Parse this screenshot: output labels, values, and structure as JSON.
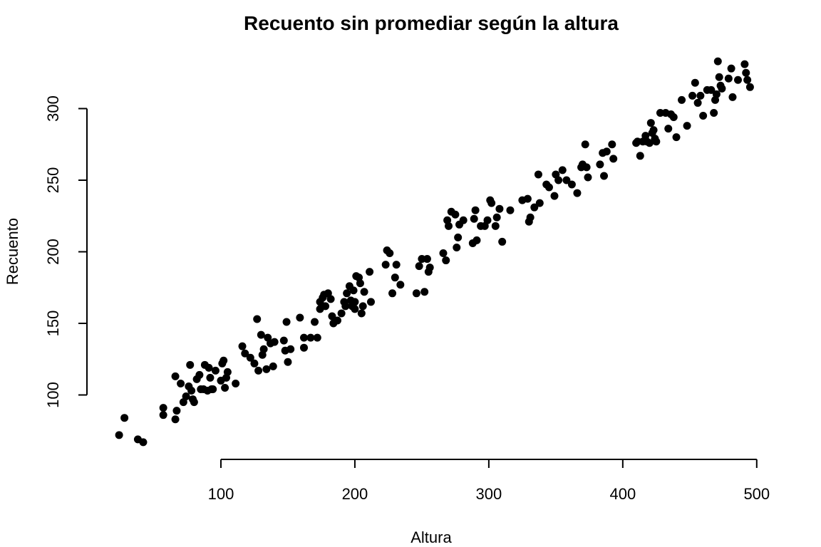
{
  "chart_data": {
    "type": "scatter",
    "title": "Recuento sin promediar según la altura",
    "xlabel": "Altura",
    "ylabel": "Recuento",
    "xlim": [
      0,
      515
    ],
    "ylim": [
      55,
      345
    ],
    "xticks": [
      100,
      200,
      300,
      400,
      500
    ],
    "yticks": [
      100,
      150,
      200,
      250,
      300
    ],
    "grid": false,
    "point_color": "#000000",
    "points": [
      [
        24,
        72
      ],
      [
        28,
        84
      ],
      [
        38,
        69
      ],
      [
        42,
        67
      ],
      [
        57,
        91
      ],
      [
        57,
        86
      ],
      [
        66,
        83
      ],
      [
        66,
        113
      ],
      [
        67,
        89
      ],
      [
        70,
        108
      ],
      [
        72,
        95
      ],
      [
        74,
        99
      ],
      [
        76,
        106
      ],
      [
        77,
        121
      ],
      [
        78,
        103
      ],
      [
        79,
        97
      ],
      [
        80,
        95
      ],
      [
        82,
        111
      ],
      [
        84,
        114
      ],
      [
        85,
        104
      ],
      [
        87,
        104
      ],
      [
        88,
        121
      ],
      [
        90,
        103
      ],
      [
        91,
        119
      ],
      [
        92,
        112
      ],
      [
        93,
        104
      ],
      [
        94,
        104
      ],
      [
        96,
        117
      ],
      [
        100,
        110
      ],
      [
        101,
        122
      ],
      [
        102,
        124
      ],
      [
        103,
        105
      ],
      [
        104,
        112
      ],
      [
        105,
        116
      ],
      [
        111,
        108
      ],
      [
        116,
        134
      ],
      [
        118,
        129
      ],
      [
        122,
        126
      ],
      [
        125,
        122
      ],
      [
        127,
        153
      ],
      [
        128,
        117
      ],
      [
        130,
        142
      ],
      [
        131,
        128
      ],
      [
        132,
        132
      ],
      [
        134,
        118
      ],
      [
        135,
        140
      ],
      [
        137,
        136
      ],
      [
        139,
        120
      ],
      [
        140,
        137
      ],
      [
        147,
        138
      ],
      [
        148,
        131
      ],
      [
        149,
        151
      ],
      [
        150,
        123
      ],
      [
        152,
        132
      ],
      [
        159,
        154
      ],
      [
        162,
        140
      ],
      [
        162,
        133
      ],
      [
        167,
        140
      ],
      [
        170,
        151
      ],
      [
        172,
        140
      ],
      [
        174,
        160
      ],
      [
        174,
        165
      ],
      [
        176,
        168
      ],
      [
        177,
        170
      ],
      [
        178,
        162
      ],
      [
        180,
        171
      ],
      [
        182,
        167
      ],
      [
        183,
        155
      ],
      [
        184,
        150
      ],
      [
        187,
        152
      ],
      [
        190,
        157
      ],
      [
        192,
        165
      ],
      [
        193,
        162
      ],
      [
        194,
        171
      ],
      [
        196,
        176
      ],
      [
        197,
        166
      ],
      [
        198,
        162
      ],
      [
        199,
        173
      ],
      [
        200,
        165
      ],
      [
        200,
        160
      ],
      [
        201,
        183
      ],
      [
        203,
        182
      ],
      [
        204,
        178
      ],
      [
        205,
        157
      ],
      [
        206,
        162
      ],
      [
        207,
        172
      ],
      [
        211,
        186
      ],
      [
        212,
        165
      ],
      [
        223,
        191
      ],
      [
        224,
        201
      ],
      [
        226,
        199
      ],
      [
        228,
        171
      ],
      [
        230,
        182
      ],
      [
        231,
        191
      ],
      [
        234,
        177
      ],
      [
        246,
        171
      ],
      [
        248,
        190
      ],
      [
        250,
        195
      ],
      [
        252,
        172
      ],
      [
        254,
        195
      ],
      [
        255,
        186
      ],
      [
        256,
        189
      ],
      [
        266,
        199
      ],
      [
        268,
        194
      ],
      [
        269,
        222
      ],
      [
        270,
        218
      ],
      [
        272,
        228
      ],
      [
        275,
        226
      ],
      [
        276,
        203
      ],
      [
        277,
        210
      ],
      [
        278,
        219
      ],
      [
        281,
        222
      ],
      [
        288,
        206
      ],
      [
        289,
        223
      ],
      [
        290,
        229
      ],
      [
        291,
        208
      ],
      [
        294,
        218
      ],
      [
        297,
        218
      ],
      [
        299,
        222
      ],
      [
        301,
        236
      ],
      [
        302,
        234
      ],
      [
        305,
        218
      ],
      [
        306,
        224
      ],
      [
        308,
        230
      ],
      [
        310,
        207
      ],
      [
        316,
        229
      ],
      [
        325,
        236
      ],
      [
        329,
        237
      ],
      [
        330,
        221
      ],
      [
        331,
        224
      ],
      [
        334,
        231
      ],
      [
        337,
        254
      ],
      [
        338,
        234
      ],
      [
        343,
        247
      ],
      [
        345,
        245
      ],
      [
        349,
        239
      ],
      [
        350,
        254
      ],
      [
        352,
        250
      ],
      [
        355,
        257
      ],
      [
        358,
        250
      ],
      [
        362,
        247
      ],
      [
        366,
        241
      ],
      [
        369,
        259
      ],
      [
        370,
        261
      ],
      [
        372,
        275
      ],
      [
        373,
        259
      ],
      [
        374,
        252
      ],
      [
        383,
        261
      ],
      [
        385,
        269
      ],
      [
        386,
        253
      ],
      [
        388,
        270
      ],
      [
        392,
        275
      ],
      [
        393,
        265
      ],
      [
        410,
        276
      ],
      [
        411,
        277
      ],
      [
        413,
        267
      ],
      [
        415,
        277
      ],
      [
        417,
        281
      ],
      [
        418,
        277
      ],
      [
        420,
        276
      ],
      [
        421,
        290
      ],
      [
        422,
        283
      ],
      [
        423,
        285
      ],
      [
        424,
        279
      ],
      [
        425,
        277
      ],
      [
        428,
        297
      ],
      [
        432,
        297
      ],
      [
        434,
        286
      ],
      [
        436,
        296
      ],
      [
        438,
        294
      ],
      [
        440,
        280
      ],
      [
        444,
        306
      ],
      [
        448,
        288
      ],
      [
        452,
        309
      ],
      [
        454,
        318
      ],
      [
        456,
        304
      ],
      [
        458,
        309
      ],
      [
        460,
        295
      ],
      [
        463,
        313
      ],
      [
        466,
        313
      ],
      [
        468,
        297
      ],
      [
        469,
        306
      ],
      [
        470,
        310
      ],
      [
        471,
        333
      ],
      [
        472,
        322
      ],
      [
        473,
        316
      ],
      [
        474,
        314
      ],
      [
        479,
        321
      ],
      [
        481,
        328
      ],
      [
        482,
        308
      ],
      [
        486,
        320
      ],
      [
        491,
        331
      ],
      [
        492,
        325
      ],
      [
        493,
        320
      ],
      [
        495,
        315
      ]
    ]
  }
}
